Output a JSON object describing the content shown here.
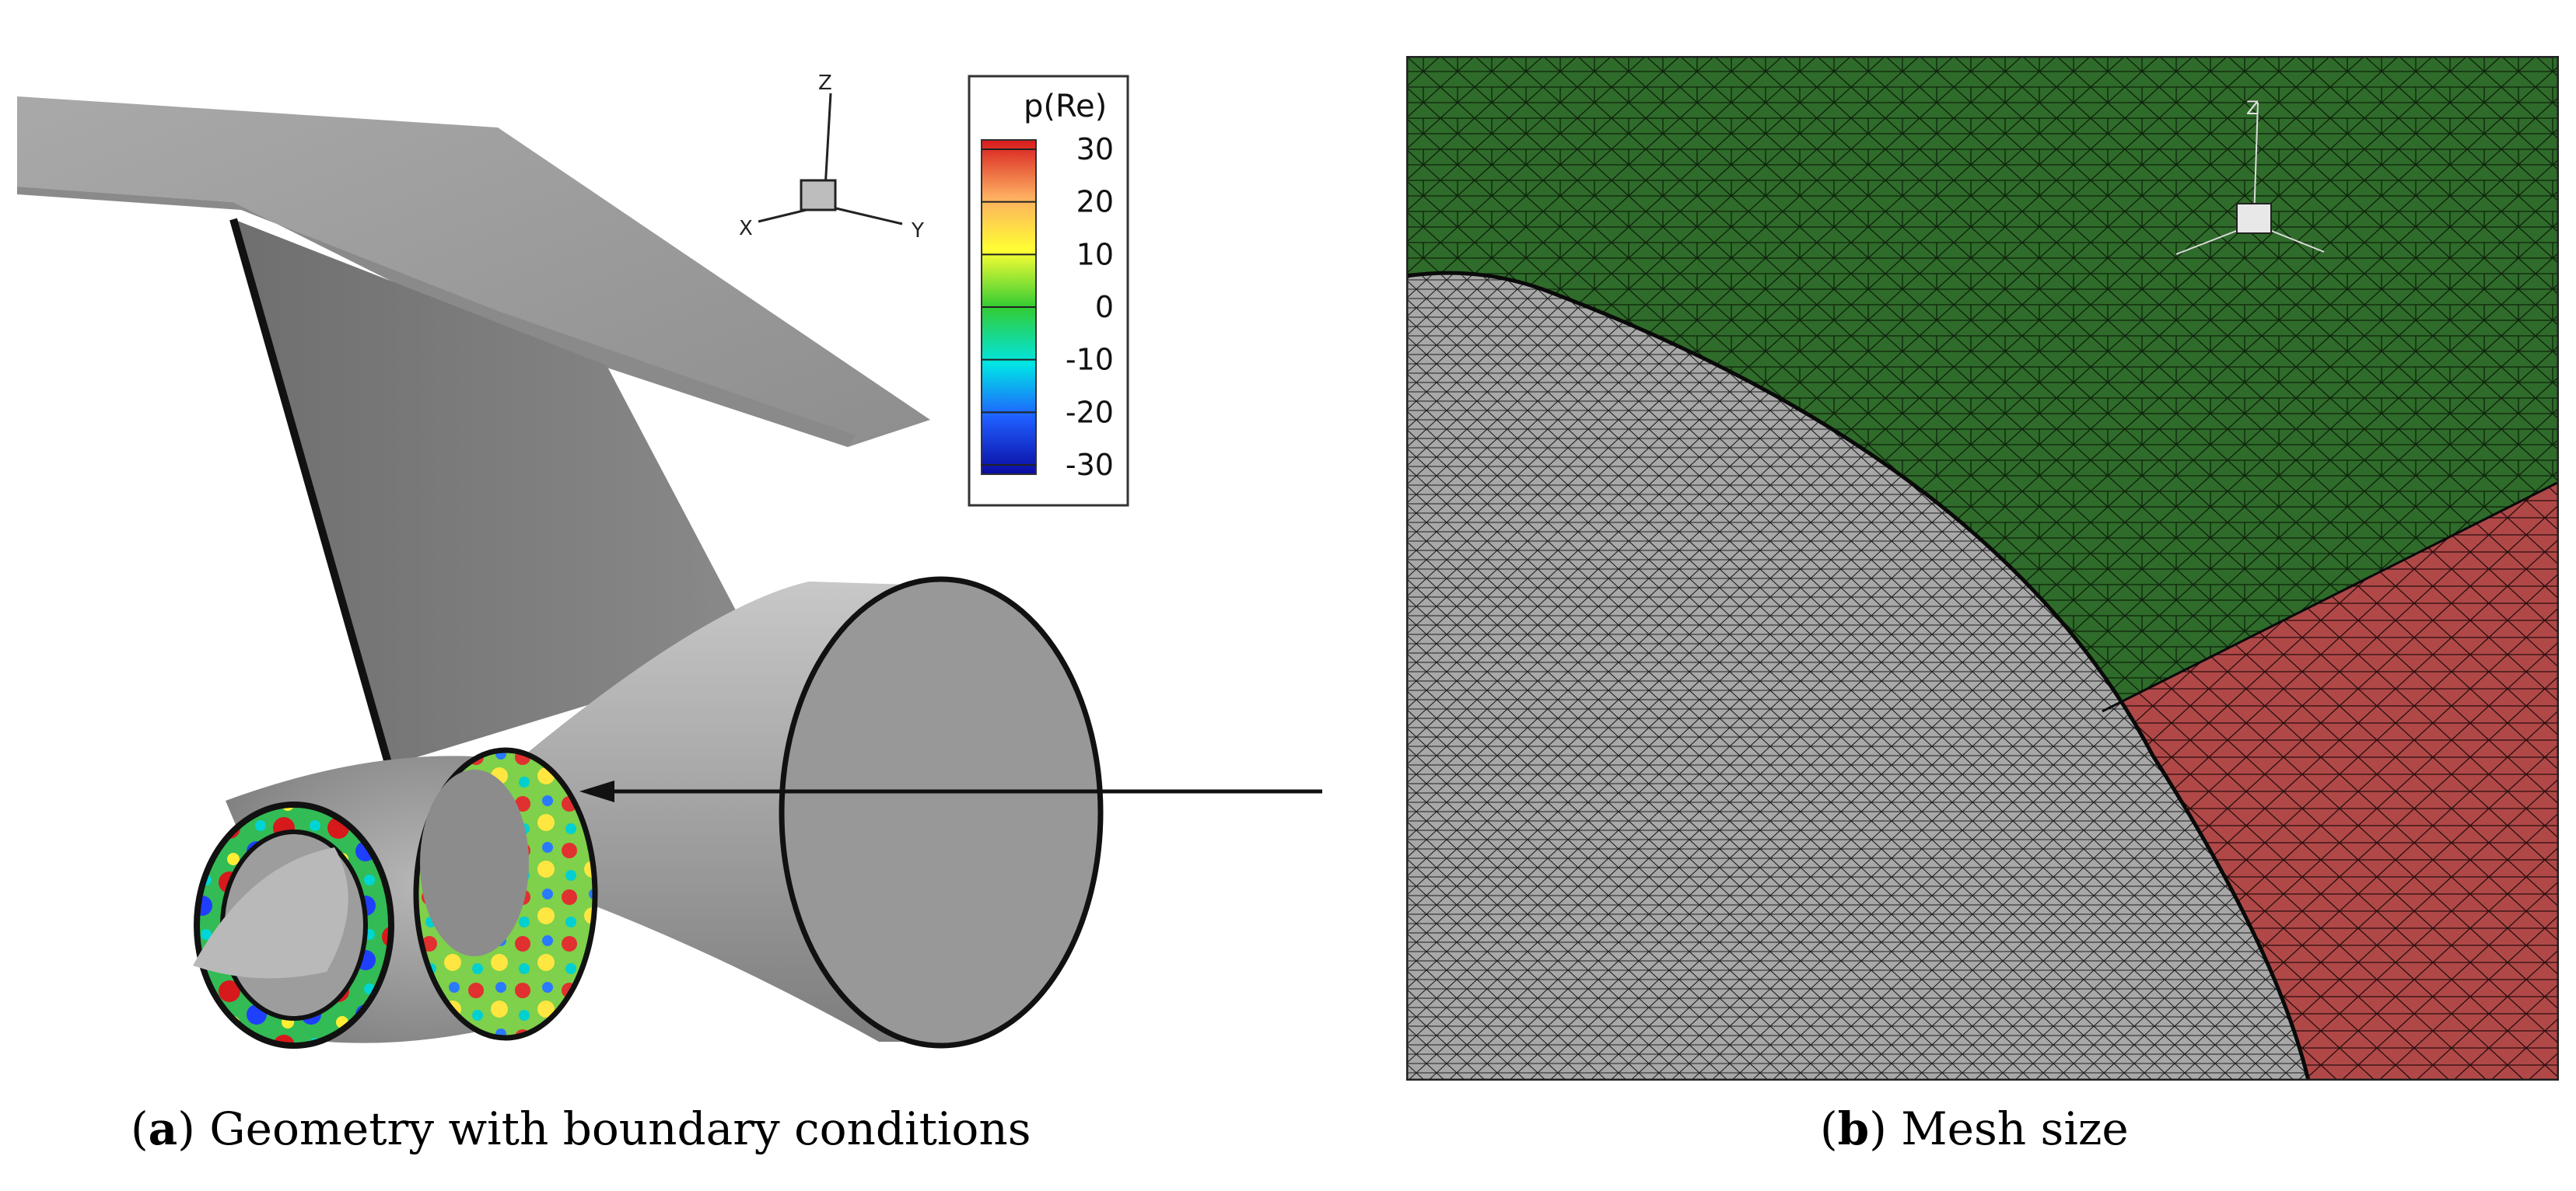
{
  "panel_a": {
    "caption": {
      "open": "(",
      "letter": "a",
      "close": ")",
      "text": " Geometry with boundary conditions"
    },
    "axes": {
      "x": "X",
      "y": "Y",
      "z": "Z"
    },
    "legend": {
      "title": "p(Re)",
      "ticks": [
        "30",
        "20",
        "10",
        "0",
        "-10",
        "-20",
        "-30"
      ],
      "colors": [
        "#d7191c",
        "#fdae61",
        "#ffff33",
        "#33cc33",
        "#00e5e5",
        "#1f5fff",
        "#0a0aa0"
      ]
    }
  },
  "panel_b": {
    "caption": {
      "open": "(",
      "letter": "b",
      "close": ")",
      "text": " Mesh size"
    },
    "axes": {
      "z": "Z"
    },
    "colors": {
      "background": "#2f6b2a",
      "surface": "#a8a8a8",
      "pylon": "#b04848",
      "edge": "#111111"
    }
  }
}
